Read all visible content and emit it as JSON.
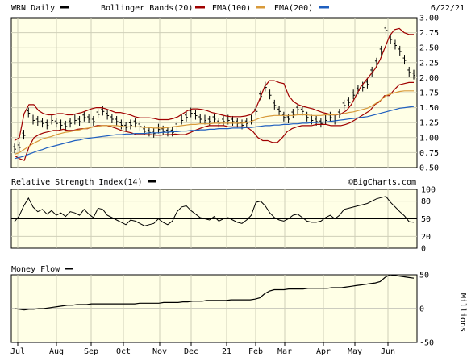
{
  "header": {
    "symbol_label": "WRN Daily",
    "indicator_label": "Bollinger Bands(20)",
    "ema100_label": "EMA(100)",
    "ema200_label": "EMA(200)",
    "date": "6/22/21"
  },
  "watermark": "©BigCharts.com",
  "colors": {
    "panel_bg": "#ffffe6",
    "price": "#000000",
    "bollinger": "#a00000",
    "ema100": "#d89a3a",
    "ema200": "#1f5fbf",
    "grid": "#cfcfb8"
  },
  "chart_data": [
    {
      "type": "line",
      "panel": "price",
      "x_ticks": [
        "Jul",
        "Aug",
        "Sep",
        "Oct",
        "Nov",
        "Dec",
        "21",
        "Feb",
        "Mar",
        "Apr",
        "May",
        "Jun"
      ],
      "y_ticks": [
        "3.00",
        "2.75",
        "2.50",
        "2.25",
        "2.00",
        "1.75",
        "1.50",
        "1.25",
        "1.00",
        "0.75",
        "0.50"
      ],
      "ylim": [
        0.5,
        3.0
      ],
      "grid": true,
      "series": [
        {
          "name": "WRN Daily",
          "style": "ohlc",
          "values": [
            0.82,
            0.85,
            1.05,
            1.42,
            1.3,
            1.28,
            1.25,
            1.22,
            1.3,
            1.25,
            1.22,
            1.2,
            1.25,
            1.3,
            1.28,
            1.35,
            1.32,
            1.28,
            1.4,
            1.45,
            1.38,
            1.32,
            1.28,
            1.22,
            1.18,
            1.22,
            1.25,
            1.2,
            1.12,
            1.1,
            1.08,
            1.15,
            1.12,
            1.1,
            1.1,
            1.2,
            1.3,
            1.35,
            1.42,
            1.38,
            1.32,
            1.3,
            1.28,
            1.32,
            1.25,
            1.28,
            1.3,
            1.28,
            1.25,
            1.22,
            1.25,
            1.3,
            1.45,
            1.7,
            1.85,
            1.72,
            1.55,
            1.45,
            1.35,
            1.32,
            1.4,
            1.48,
            1.45,
            1.35,
            1.3,
            1.28,
            1.25,
            1.3,
            1.35,
            1.3,
            1.4,
            1.55,
            1.6,
            1.72,
            1.8,
            1.85,
            1.9,
            2.1,
            2.25,
            2.45,
            2.8,
            2.65,
            2.55,
            2.45,
            2.3,
            2.1,
            2.05
          ]
        },
        {
          "name": "Bollinger Bands(20) Upper",
          "values": [
            0.95,
            1.0,
            1.4,
            1.55,
            1.55,
            1.45,
            1.4,
            1.38,
            1.38,
            1.4,
            1.4,
            1.38,
            1.38,
            1.4,
            1.42,
            1.45,
            1.48,
            1.5,
            1.5,
            1.48,
            1.45,
            1.42,
            1.42,
            1.4,
            1.38,
            1.35,
            1.33,
            1.33,
            1.33,
            1.32,
            1.3,
            1.3,
            1.3,
            1.32,
            1.35,
            1.4,
            1.45,
            1.48,
            1.48,
            1.47,
            1.45,
            1.42,
            1.4,
            1.38,
            1.36,
            1.35,
            1.35,
            1.35,
            1.36,
            1.38,
            1.45,
            1.65,
            1.85,
            1.95,
            1.95,
            1.92,
            1.9,
            1.7,
            1.6,
            1.55,
            1.52,
            1.5,
            1.48,
            1.45,
            1.42,
            1.4,
            1.38,
            1.38,
            1.4,
            1.45,
            1.55,
            1.7,
            1.85,
            1.95,
            2.05,
            2.15,
            2.3,
            2.5,
            2.7,
            2.8,
            2.82,
            2.75,
            2.72,
            2.72
          ]
        },
        {
          "name": "Bollinger Bands(20) Lower",
          "values": [
            0.7,
            0.65,
            0.62,
            0.85,
            1.0,
            1.05,
            1.08,
            1.1,
            1.12,
            1.12,
            1.14,
            1.12,
            1.12,
            1.14,
            1.15,
            1.15,
            1.18,
            1.2,
            1.2,
            1.2,
            1.18,
            1.15,
            1.12,
            1.1,
            1.08,
            1.05,
            1.05,
            1.05,
            1.05,
            1.04,
            1.04,
            1.05,
            1.05,
            1.06,
            1.05,
            1.05,
            1.08,
            1.12,
            1.15,
            1.18,
            1.2,
            1.2,
            1.2,
            1.2,
            1.18,
            1.18,
            1.18,
            1.18,
            1.16,
            1.1,
            1.0,
            0.95,
            0.95,
            0.92,
            0.92,
            1.0,
            1.1,
            1.15,
            1.18,
            1.2,
            1.2,
            1.2,
            1.22,
            1.22,
            1.22,
            1.2,
            1.2,
            1.2,
            1.22,
            1.25,
            1.3,
            1.35,
            1.4,
            1.45,
            1.55,
            1.6,
            1.7,
            1.7,
            1.8,
            1.88,
            1.9,
            1.92,
            1.92
          ]
        },
        {
          "name": "EMA(100)",
          "values": [
            0.72,
            0.75,
            0.8,
            0.85,
            0.9,
            0.94,
            0.98,
            1.0,
            1.02,
            1.05,
            1.07,
            1.09,
            1.1,
            1.12,
            1.13,
            1.15,
            1.16,
            1.18,
            1.19,
            1.2,
            1.2,
            1.2,
            1.2,
            1.19,
            1.18,
            1.18,
            1.18,
            1.18,
            1.17,
            1.17,
            1.16,
            1.16,
            1.16,
            1.17,
            1.18,
            1.19,
            1.2,
            1.21,
            1.22,
            1.22,
            1.23,
            1.23,
            1.23,
            1.24,
            1.24,
            1.24,
            1.24,
            1.24,
            1.24,
            1.24,
            1.25,
            1.27,
            1.3,
            1.33,
            1.35,
            1.36,
            1.37,
            1.37,
            1.37,
            1.37,
            1.37,
            1.38,
            1.38,
            1.38,
            1.37,
            1.37,
            1.37,
            1.38,
            1.38,
            1.38,
            1.39,
            1.4,
            1.42,
            1.43,
            1.45,
            1.47,
            1.49,
            1.53,
            1.58,
            1.63,
            1.7,
            1.73,
            1.75,
            1.77,
            1.78,
            1.78,
            1.78
          ]
        },
        {
          "name": "EMA(200)",
          "values": [
            0.65,
            0.67,
            0.69,
            0.72,
            0.75,
            0.78,
            0.8,
            0.83,
            0.85,
            0.87,
            0.89,
            0.91,
            0.93,
            0.95,
            0.96,
            0.98,
            0.99,
            1.0,
            1.01,
            1.02,
            1.03,
            1.04,
            1.05,
            1.05,
            1.06,
            1.06,
            1.07,
            1.07,
            1.07,
            1.08,
            1.08,
            1.08,
            1.09,
            1.09,
            1.1,
            1.1,
            1.11,
            1.11,
            1.12,
            1.12,
            1.13,
            1.13,
            1.14,
            1.14,
            1.15,
            1.15,
            1.15,
            1.16,
            1.16,
            1.16,
            1.17,
            1.17,
            1.18,
            1.19,
            1.2,
            1.2,
            1.21,
            1.21,
            1.22,
            1.22,
            1.23,
            1.23,
            1.24,
            1.24,
            1.25,
            1.25,
            1.26,
            1.26,
            1.27,
            1.28,
            1.29,
            1.3,
            1.31,
            1.32,
            1.33,
            1.34,
            1.35,
            1.37,
            1.39,
            1.41,
            1.43,
            1.45,
            1.47,
            1.49,
            1.5,
            1.51,
            1.52
          ]
        }
      ]
    },
    {
      "type": "line",
      "panel": "rsi",
      "title": "Relative Strength Index(14)",
      "y_ticks": [
        "100",
        "80",
        "50",
        "20",
        "0"
      ],
      "ylim": [
        0,
        100
      ],
      "reference_line": 50,
      "series": [
        {
          "name": "Relative Strength Index(14)",
          "values": [
            45,
            55,
            72,
            85,
            70,
            62,
            66,
            58,
            64,
            56,
            60,
            54,
            62,
            60,
            56,
            66,
            58,
            52,
            68,
            66,
            56,
            52,
            48,
            44,
            40,
            48,
            46,
            42,
            38,
            40,
            42,
            50,
            44,
            40,
            46,
            62,
            70,
            72,
            64,
            58,
            52,
            50,
            48,
            54,
            46,
            50,
            52,
            48,
            44,
            42,
            48,
            56,
            78,
            80,
            72,
            60,
            52,
            48,
            46,
            50,
            56,
            58,
            52,
            46,
            44,
            44,
            46,
            52,
            56,
            50,
            56,
            66,
            68,
            70,
            72,
            74,
            76,
            80,
            84,
            86,
            88,
            78,
            70,
            62,
            55,
            45,
            44
          ]
        }
      ]
    },
    {
      "type": "line",
      "panel": "money_flow",
      "title": "Money Flow",
      "y_ticks": [
        "50",
        "0",
        "-50"
      ],
      "ylabel": "Millions",
      "ylim": [
        -50,
        50
      ],
      "series": [
        {
          "name": "Money Flow",
          "values": [
            0,
            -1,
            -2,
            -1,
            -1,
            0,
            0,
            1,
            2,
            3,
            4,
            5,
            5,
            6,
            6,
            6,
            7,
            7,
            7,
            7,
            7,
            7,
            7,
            7,
            7,
            7,
            8,
            8,
            8,
            8,
            8,
            9,
            9,
            9,
            9,
            10,
            10,
            11,
            11,
            11,
            12,
            12,
            12,
            12,
            12,
            13,
            13,
            13,
            13,
            13,
            14,
            16,
            22,
            26,
            28,
            28,
            28,
            29,
            29,
            29,
            29,
            30,
            30,
            30,
            30,
            30,
            31,
            31,
            31,
            32,
            33,
            34,
            35,
            36,
            37,
            38,
            40,
            46,
            50,
            49,
            48,
            47,
            46,
            45
          ]
        }
      ]
    }
  ]
}
